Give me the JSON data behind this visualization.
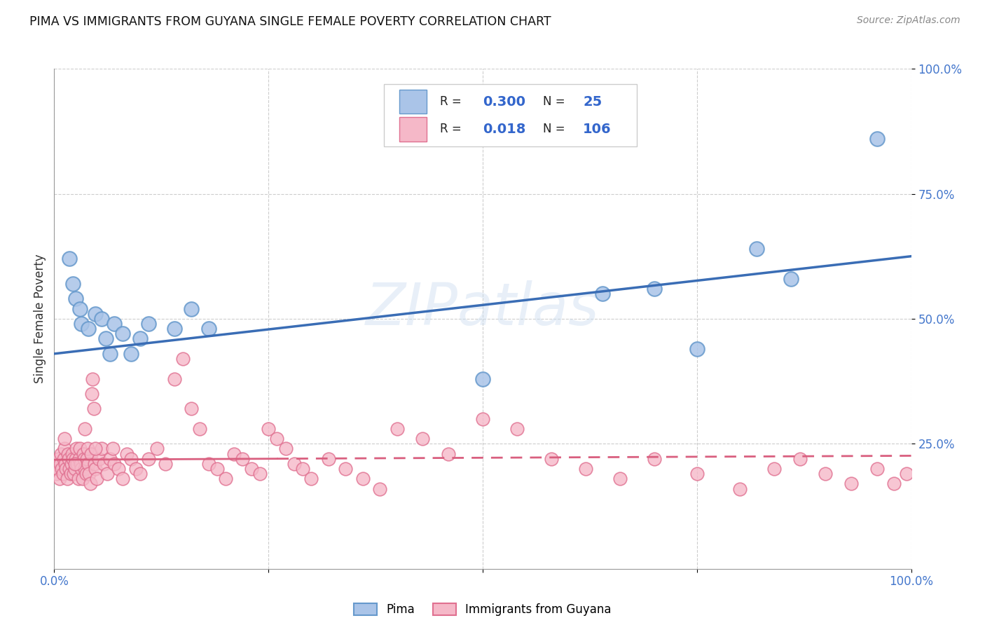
{
  "title": "PIMA VS IMMIGRANTS FROM GUYANA SINGLE FEMALE POVERTY CORRELATION CHART",
  "source_text": "Source: ZipAtlas.com",
  "ylabel": "Single Female Poverty",
  "xlim": [
    0.0,
    1.0
  ],
  "ylim": [
    0.0,
    1.0
  ],
  "xticks": [
    0.0,
    0.25,
    0.5,
    0.75,
    1.0
  ],
  "yticks": [
    0.25,
    0.5,
    0.75,
    1.0
  ],
  "xticklabels": [
    "0.0%",
    "",
    "",
    "",
    "100.0%"
  ],
  "yticklabels": [
    "25.0%",
    "50.0%",
    "75.0%",
    "100.0%"
  ],
  "background_color": "#ffffff",
  "watermark": "ZIPatlas",
  "pima_color": "#aac4e8",
  "pima_edge_color": "#6699cc",
  "guyana_color": "#f5b8c8",
  "guyana_edge_color": "#e07090",
  "pima_line_color": "#3a6db5",
  "guyana_line_color": "#d95f7f",
  "tick_color": "#4477cc",
  "legend_R_color": "#3366cc",
  "pima_R": 0.3,
  "pima_N": 25,
  "guyana_R": 0.018,
  "guyana_N": 106,
  "pima_intercept": 0.43,
  "pima_slope": 0.195,
  "guyana_intercept": 0.218,
  "guyana_slope": 0.008,
  "pima_x": [
    0.018,
    0.022,
    0.025,
    0.03,
    0.032,
    0.04,
    0.048,
    0.055,
    0.06,
    0.065,
    0.07,
    0.08,
    0.09,
    0.1,
    0.11,
    0.14,
    0.16,
    0.18,
    0.5,
    0.64,
    0.7,
    0.75,
    0.82,
    0.86,
    0.96
  ],
  "pima_y": [
    0.62,
    0.57,
    0.54,
    0.52,
    0.49,
    0.48,
    0.51,
    0.5,
    0.46,
    0.43,
    0.49,
    0.47,
    0.43,
    0.46,
    0.49,
    0.48,
    0.52,
    0.48,
    0.38,
    0.55,
    0.56,
    0.44,
    0.64,
    0.58,
    0.86
  ],
  "guyana_x": [
    0.003,
    0.004,
    0.005,
    0.006,
    0.007,
    0.008,
    0.009,
    0.01,
    0.011,
    0.012,
    0.013,
    0.014,
    0.015,
    0.016,
    0.017,
    0.018,
    0.019,
    0.02,
    0.021,
    0.022,
    0.023,
    0.024,
    0.025,
    0.026,
    0.027,
    0.028,
    0.029,
    0.03,
    0.031,
    0.032,
    0.033,
    0.034,
    0.035,
    0.036,
    0.037,
    0.038,
    0.039,
    0.04,
    0.041,
    0.042,
    0.043,
    0.044,
    0.045,
    0.046,
    0.047,
    0.048,
    0.05,
    0.052,
    0.055,
    0.058,
    0.062,
    0.065,
    0.068,
    0.07,
    0.075,
    0.08,
    0.085,
    0.09,
    0.095,
    0.1,
    0.11,
    0.12,
    0.13,
    0.14,
    0.15,
    0.16,
    0.17,
    0.18,
    0.19,
    0.2,
    0.21,
    0.22,
    0.23,
    0.24,
    0.25,
    0.26,
    0.27,
    0.28,
    0.29,
    0.3,
    0.32,
    0.34,
    0.36,
    0.38,
    0.4,
    0.43,
    0.46,
    0.5,
    0.54,
    0.58,
    0.62,
    0.66,
    0.7,
    0.75,
    0.8,
    0.84,
    0.87,
    0.9,
    0.93,
    0.96,
    0.98,
    0.995,
    0.012,
    0.024,
    0.036,
    0.048
  ],
  "guyana_y": [
    0.19,
    0.2,
    0.22,
    0.18,
    0.21,
    0.23,
    0.2,
    0.19,
    0.22,
    0.24,
    0.21,
    0.2,
    0.18,
    0.23,
    0.22,
    0.2,
    0.19,
    0.21,
    0.23,
    0.22,
    0.19,
    0.2,
    0.22,
    0.24,
    0.21,
    0.18,
    0.22,
    0.24,
    0.21,
    0.2,
    0.18,
    0.23,
    0.22,
    0.2,
    0.19,
    0.22,
    0.24,
    0.21,
    0.19,
    0.17,
    0.23,
    0.35,
    0.38,
    0.32,
    0.21,
    0.2,
    0.18,
    0.22,
    0.24,
    0.21,
    0.19,
    0.22,
    0.24,
    0.21,
    0.2,
    0.18,
    0.23,
    0.22,
    0.2,
    0.19,
    0.22,
    0.24,
    0.21,
    0.38,
    0.42,
    0.32,
    0.28,
    0.21,
    0.2,
    0.18,
    0.23,
    0.22,
    0.2,
    0.19,
    0.28,
    0.26,
    0.24,
    0.21,
    0.2,
    0.18,
    0.22,
    0.2,
    0.18,
    0.16,
    0.28,
    0.26,
    0.23,
    0.3,
    0.28,
    0.22,
    0.2,
    0.18,
    0.22,
    0.19,
    0.16,
    0.2,
    0.22,
    0.19,
    0.17,
    0.2,
    0.17,
    0.19,
    0.26,
    0.21,
    0.28,
    0.24
  ]
}
